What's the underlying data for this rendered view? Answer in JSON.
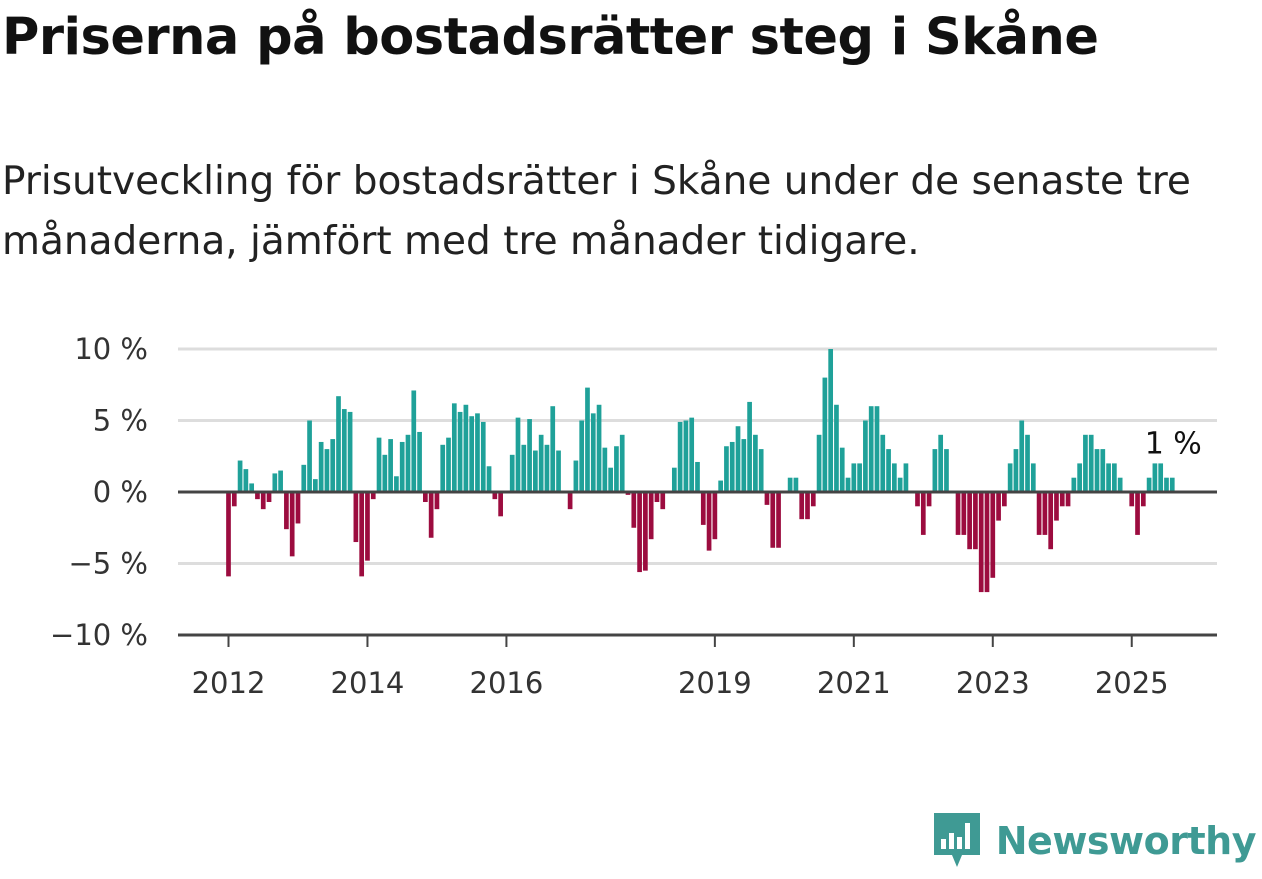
{
  "title": "Priserna på bostadsrätter steg i Skåne",
  "subtitle": "Prisutveckling för bostadsrätter i Skåne under de senaste tre månaderna, jämfört med tre månader tidigare.",
  "brand": {
    "name": "Newsworthy",
    "color": "#3f9a94",
    "icon": "bar-chart-speech-bubble-icon"
  },
  "colors": {
    "positive": "#1fa199",
    "negative": "#9c0c3f",
    "grid": "#dddddd",
    "zero_line": "#444444"
  },
  "chart_data": {
    "type": "bar",
    "ylim": [
      -10,
      10
    ],
    "y_ticks": [
      {
        "value": 10,
        "label": "10 %"
      },
      {
        "value": 5,
        "label": "5 %"
      },
      {
        "value": 0,
        "label": "0 %"
      },
      {
        "value": -5,
        "label": "−5 %"
      },
      {
        "value": -10,
        "label": "−10 %"
      }
    ],
    "x_ticks": [
      {
        "index": 0,
        "label": "2012"
      },
      {
        "index": 24,
        "label": "2014"
      },
      {
        "index": 48,
        "label": "2016"
      },
      {
        "index": 84,
        "label": "2019"
      },
      {
        "index": 108,
        "label": "2021"
      },
      {
        "index": 132,
        "label": "2023"
      },
      {
        "index": 156,
        "label": "2025"
      }
    ],
    "start": "2012-01",
    "grid": true,
    "last_value_label": "1 %",
    "values": [
      -5.9,
      -1.0,
      2.2,
      1.6,
      0.6,
      -0.5,
      -1.2,
      -0.7,
      1.3,
      1.5,
      -2.6,
      -4.5,
      -2.2,
      1.9,
      5.0,
      0.9,
      3.5,
      3.0,
      3.7,
      6.7,
      5.8,
      5.6,
      -3.5,
      -5.9,
      -4.8,
      -0.5,
      3.8,
      2.6,
      3.7,
      1.1,
      3.5,
      4.0,
      7.1,
      4.2,
      -0.7,
      -3.2,
      -1.2,
      3.3,
      3.8,
      6.2,
      5.6,
      6.1,
      5.3,
      5.5,
      4.9,
      1.8,
      -0.5,
      -1.7,
      0.1,
      2.6,
      5.2,
      3.3,
      5.1,
      2.9,
      4.0,
      3.3,
      6.0,
      2.9,
      0.1,
      -1.2,
      2.2,
      5.0,
      7.3,
      5.5,
      6.1,
      3.1,
      1.7,
      3.2,
      4.0,
      -0.2,
      -2.5,
      -5.6,
      -5.5,
      -3.3,
      -0.7,
      -1.2,
      0.1,
      1.7,
      4.9,
      5.0,
      5.2,
      2.1,
      -2.3,
      -4.1,
      -3.3,
      0.8,
      3.2,
      3.5,
      4.6,
      3.7,
      6.3,
      4.0,
      3.0,
      -0.9,
      -3.9,
      -3.9,
      0.1,
      1.0,
      1.0,
      -1.9,
      -1.9,
      -1.0,
      4.0,
      8.0,
      10.0,
      6.1,
      3.1,
      1.0,
      2.0,
      2.0,
      5.0,
      6.0,
      6.0,
      4.0,
      3.0,
      2.0,
      1.0,
      2.0,
      0.1,
      -1.0,
      -3.0,
      -1.0,
      3.0,
      4.0,
      3.0,
      0.1,
      -3.0,
      -3.0,
      -4.0,
      -4.0,
      -7.0,
      -7.0,
      -6.0,
      -2.0,
      -1.0,
      2.0,
      3.0,
      5.0,
      4.0,
      2.0,
      -3.0,
      -3.0,
      -4.0,
      -2.0,
      -1.0,
      -1.0,
      1.0,
      2.0,
      4.0,
      4.0,
      3.0,
      3.0,
      2.0,
      2.0,
      1.0,
      0.1,
      -1.0,
      -3.0,
      -1.0,
      1.0,
      2.0,
      2.0,
      1.0,
      1.0
    ]
  }
}
